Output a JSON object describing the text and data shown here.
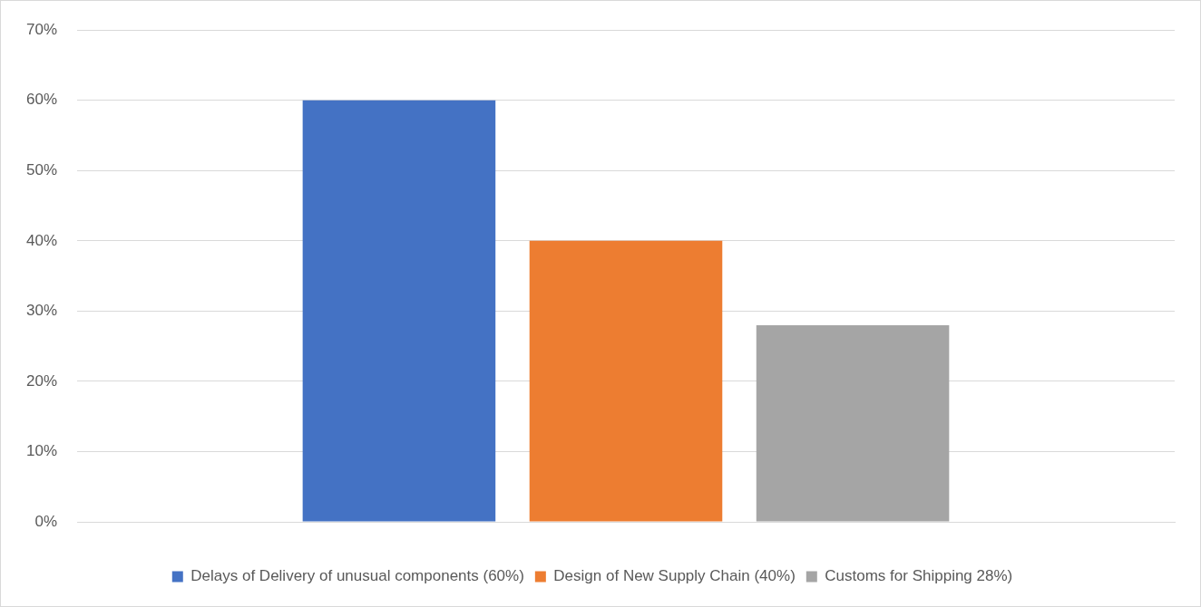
{
  "chart_data": {
    "type": "bar",
    "categories": [
      null
    ],
    "series": [
      {
        "name": "Delays of Delivery of unusual components (60%)",
        "color": "#4472c4",
        "values": [
          60
        ]
      },
      {
        "name": "Design of New Supply Chain (40%)",
        "color": "#ed7d31",
        "values": [
          40
        ]
      },
      {
        "name": "Customs for Shipping 28%)",
        "color": "#a5a5a5",
        "values": [
          28
        ]
      }
    ],
    "ylim": [
      0,
      70
    ],
    "yticks": [
      {
        "value": 0,
        "label": "0%"
      },
      {
        "value": 10,
        "label": "10%"
      },
      {
        "value": 20,
        "label": "20%"
      },
      {
        "value": 30,
        "label": "30%"
      },
      {
        "value": 40,
        "label": "40%"
      },
      {
        "value": 50,
        "label": "50%"
      },
      {
        "value": 60,
        "label": "60%"
      },
      {
        "value": 70,
        "label": "70%"
      }
    ],
    "grid": "y",
    "legend": "bottom"
  }
}
